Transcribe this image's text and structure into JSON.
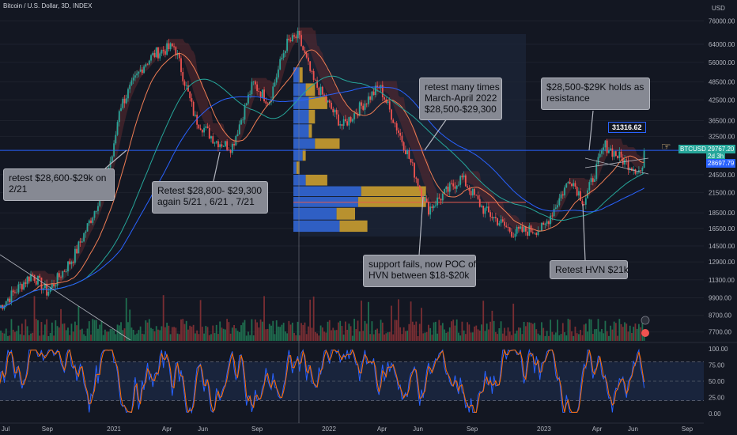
{
  "header": {
    "title": "Bitcoin / U.S. Dollar, 3D, INDEX"
  },
  "currency": "USD",
  "chart_data": {
    "type": "candlestick",
    "title": "Bitcoin / U.S. Dollar, 3D, INDEX",
    "x_ticks": [
      "Jul",
      "Sep",
      "2021",
      "Apr",
      "Jun",
      "Sep",
      "2022",
      "Apr",
      "Jun",
      "Sep",
      "2023",
      "Apr",
      "Jun",
      "Sep"
    ],
    "y_ticks": [
      76000,
      64000,
      56000,
      48500,
      42500,
      36500,
      32500,
      24500,
      21500,
      18500,
      16500,
      14500,
      12900,
      11300,
      9900,
      8700,
      7700
    ],
    "y_scale": "log",
    "price_path": [
      [
        "2020-06-20",
        9200
      ],
      [
        "2020-08-15",
        11800
      ],
      [
        "2020-09-10",
        10300
      ],
      [
        "2020-10-25",
        13400
      ],
      [
        "2020-12-01",
        19200
      ],
      [
        "2020-12-31",
        29000
      ],
      [
        "2021-01-10",
        40000
      ],
      [
        "2021-02-20",
        55000
      ],
      [
        "2021-03-13",
        60000
      ],
      [
        "2021-04-14",
        63000
      ],
      [
        "2021-05-19",
        37000
      ],
      [
        "2021-06-22",
        31500
      ],
      [
        "2021-07-20",
        30000
      ],
      [
        "2021-08-25",
        48000
      ],
      [
        "2021-09-21",
        42000
      ],
      [
        "2021-10-20",
        64000
      ],
      [
        "2021-11-10",
        68000
      ],
      [
        "2021-12-05",
        49000
      ],
      [
        "2022-01-24",
        35000
      ],
      [
        "2022-03-28",
        47000
      ],
      [
        "2022-05-10",
        30000
      ],
      [
        "2022-06-18",
        19000
      ],
      [
        "2022-08-14",
        24000
      ],
      [
        "2022-09-20",
        19000
      ],
      [
        "2022-11-09",
        16000
      ],
      [
        "2022-12-31",
        16500
      ],
      [
        "2023-02-15",
        24000
      ],
      [
        "2023-03-10",
        20000
      ],
      [
        "2023-04-14",
        30500
      ],
      [
        "2023-05-20",
        26800
      ],
      [
        "2023-06-16",
        25000
      ],
      [
        "2023-06-22",
        29800
      ]
    ],
    "price_tags": {
      "high_label": "31316.62",
      "symbol": "BTCUSD",
      "last": "29767.20",
      "countdown": "2d 3h",
      "level": "28697.79"
    },
    "oscillator": {
      "ticks": [
        "100.00",
        "75.00",
        "50.00",
        "25.00",
        "0.00"
      ],
      "band": [
        20,
        80
      ],
      "series": [
        {
          "color": "#2962ff"
        },
        {
          "color": "#ff6d00"
        }
      ]
    },
    "volume_profile": {
      "poc_price": 20000,
      "rows": [
        {
          "price_lo": 16000,
          "price_hi": 17500,
          "buy": 30,
          "sell": 18
        },
        {
          "price_lo": 17500,
          "price_hi": 19200,
          "buy": 28,
          "sell": 12
        },
        {
          "price_lo": 19200,
          "price_hi": 20800,
          "buy": 42,
          "sell": 44
        },
        {
          "price_lo": 20800,
          "price_hi": 22500,
          "buy": 44,
          "sell": 42
        },
        {
          "price_lo": 22500,
          "price_hi": 24500,
          "buy": 8,
          "sell": 14
        },
        {
          "price_lo": 24500,
          "price_hi": 27000,
          "buy": 2,
          "sell": 2
        },
        {
          "price_lo": 27000,
          "price_hi": 29500,
          "buy": 6,
          "sell": 2
        },
        {
          "price_lo": 29500,
          "price_hi": 32000,
          "buy": 14,
          "sell": 16
        },
        {
          "price_lo": 32000,
          "price_hi": 35500,
          "buy": 10,
          "sell": 2
        },
        {
          "price_lo": 35500,
          "price_hi": 39500,
          "buy": 10,
          "sell": 4
        },
        {
          "price_lo": 39500,
          "price_hi": 43500,
          "buy": 10,
          "sell": 12
        },
        {
          "price_lo": 43500,
          "price_hi": 48000,
          "buy": 8,
          "sell": 6
        },
        {
          "price_lo": 48000,
          "price_hi": 54000,
          "buy": 4,
          "sell": 2
        }
      ]
    },
    "horizontal_levels": [
      29300,
      20000
    ],
    "colors": {
      "up": "#26a69a",
      "down": "#ef5350",
      "bg": "#131722",
      "band": "#1e2d4f"
    }
  },
  "annotations": [
    {
      "lines": [
        "retest $28,600-$29k on",
        "2/21"
      ]
    },
    {
      "lines": [
        "Retest $28,800- $29,300",
        "again 5/21 , 6/21 , 7/21"
      ]
    },
    {
      "lines": [
        "retest many times",
        "March-April 2022",
        "$28,500-$29,300"
      ]
    },
    {
      "lines": [
        "support fails, now POC of",
        "HVN between $18-$20k"
      ]
    },
    {
      "lines": [
        "$28,500-$29K holds as",
        "resistance"
      ]
    },
    {
      "lines": [
        "Retest HVN $21k"
      ]
    }
  ]
}
